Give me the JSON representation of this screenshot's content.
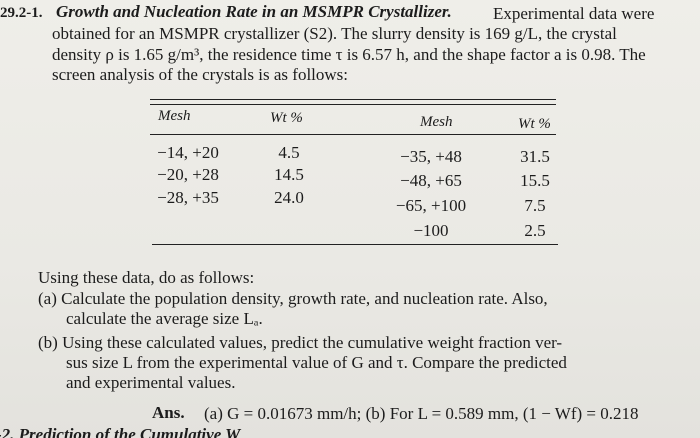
{
  "problem": {
    "number": "29.2-1.",
    "title": "Growth and Nucleation Rate in an MSMPR Crystallizer.",
    "text_lines": [
      "Experimental data were",
      "obtained for an MSMPR crystallizer (S2). The slurry density is 169 g/L, the crystal",
      "density ρ is 1.65 g/m³, the residence time τ is 6.57 h, and the shape factor a is 0.98. The",
      "screen analysis of the crystals is as follows:"
    ]
  },
  "table": {
    "headers": [
      "Mesh",
      "Wt %",
      "Mesh",
      "Wt %"
    ],
    "left_rows": [
      [
        "−14, +20",
        "4.5"
      ],
      [
        "−20, +28",
        "14.5"
      ],
      [
        "−28, +35",
        "24.0"
      ]
    ],
    "right_rows": [
      [
        "−35, +48",
        "31.5"
      ],
      [
        "−48, +65",
        "15.5"
      ],
      [
        "−65, +100",
        "7.5"
      ],
      [
        "−100",
        "2.5"
      ]
    ]
  },
  "instructions": {
    "intro": "Using these data, do as follows:",
    "a_lines": [
      "(a) Calculate the population density, growth rate, and nucleation rate. Also,",
      "calculate the average size Lₐ."
    ],
    "b_lines": [
      "(b) Using these calculated values, predict the cumulative weight fraction ver-",
      "sus size L from the experimental value of G and τ. Compare the predicted",
      "and experimental values."
    ]
  },
  "answer": {
    "label": "Ans.",
    "text": "(a) G = 0.01673 mm/h; (b) For L = 0.589 mm, (1 − Wf) = 0.218"
  },
  "next_problem": "-2. Prediction of the Cumulative W"
}
